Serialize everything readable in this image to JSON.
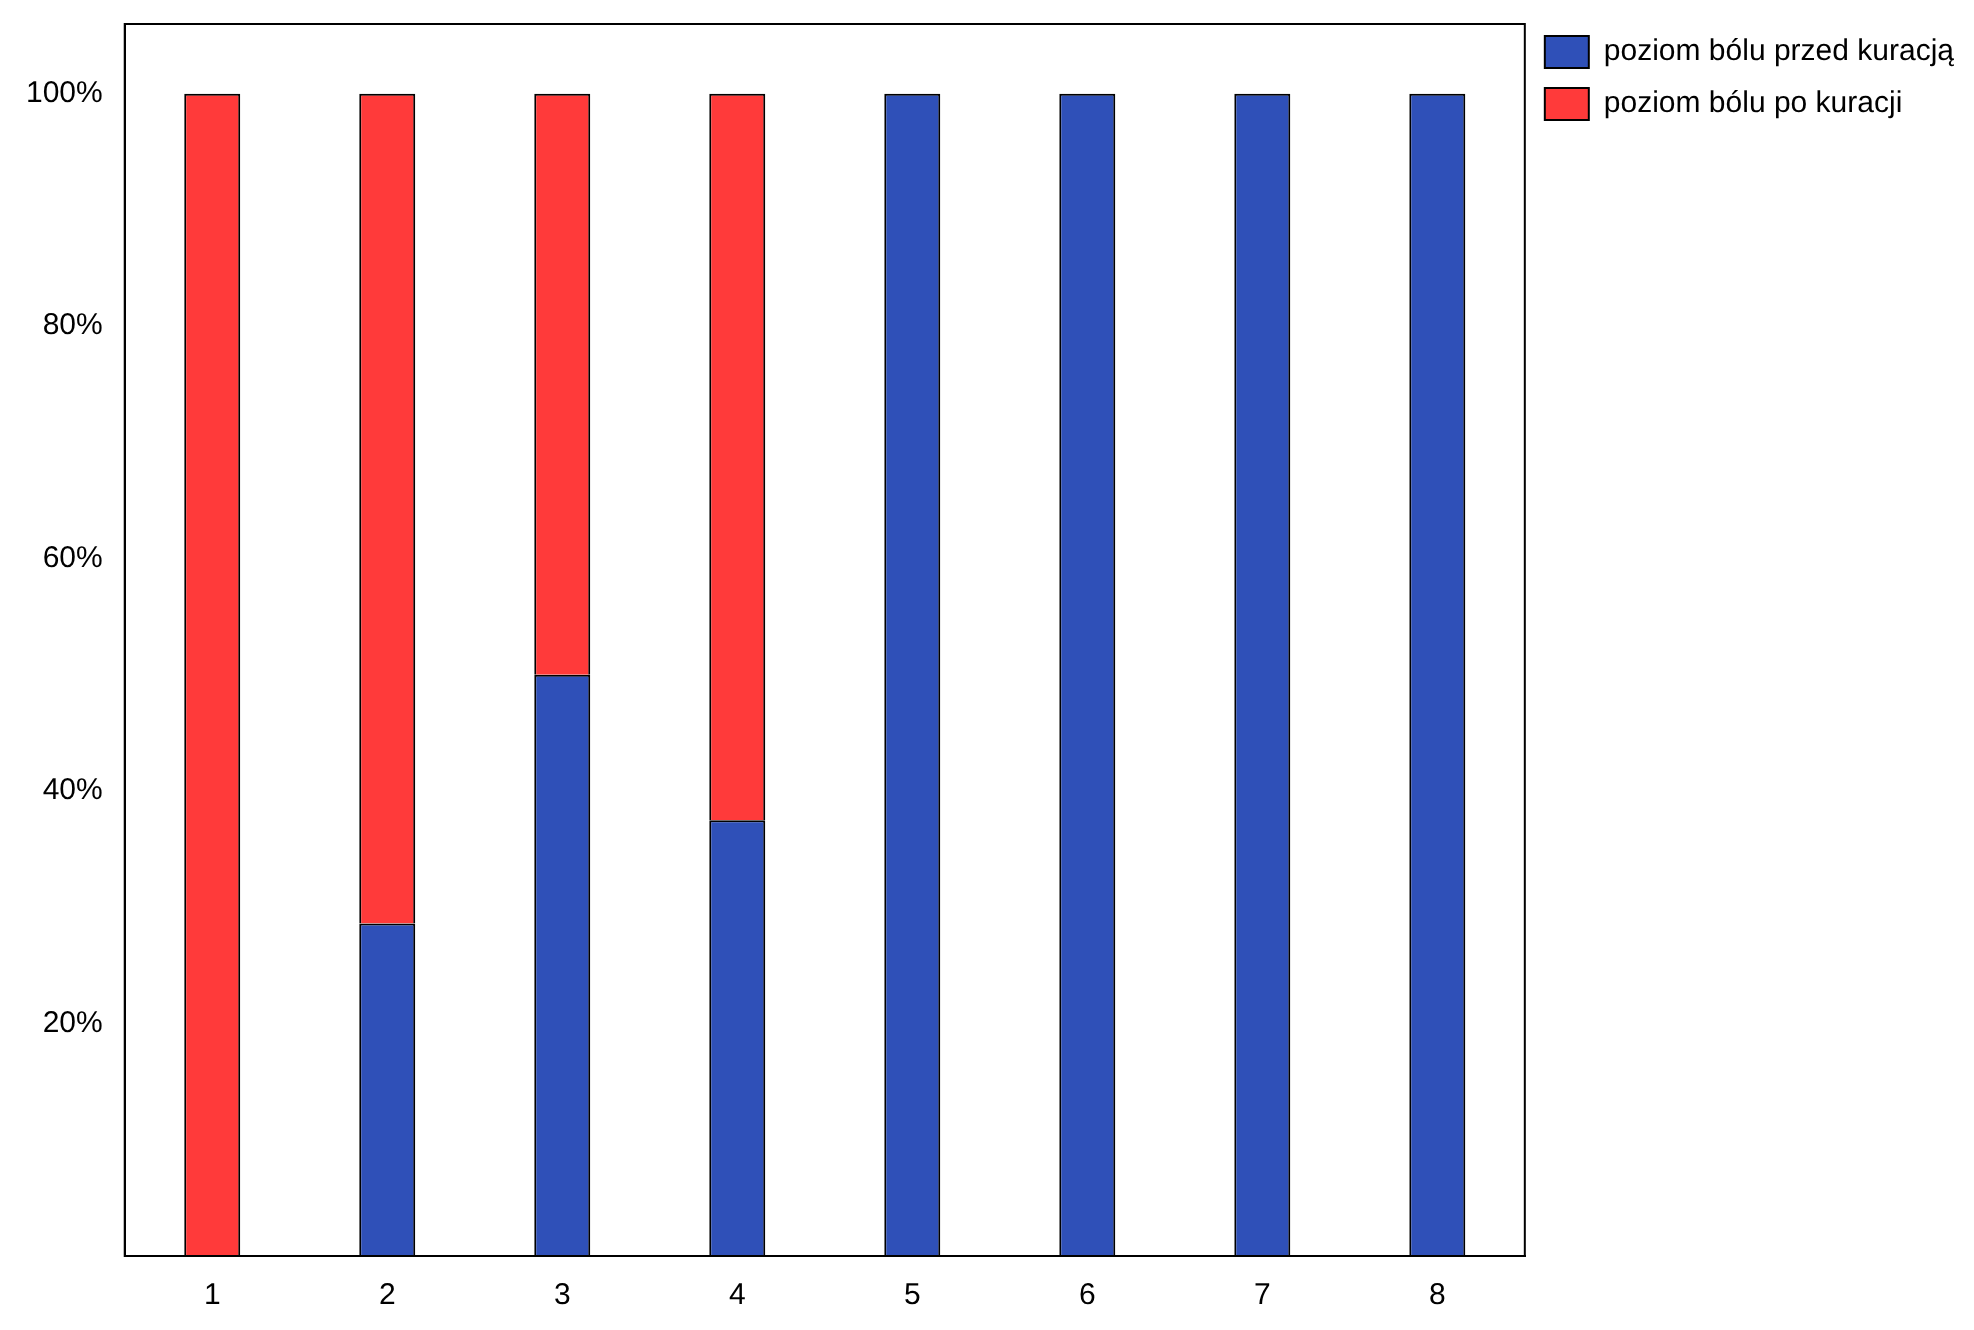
{
  "chart_data": {
    "type": "bar",
    "stacked": true,
    "categories": [
      "1",
      "2",
      "3",
      "4",
      "5",
      "6",
      "7",
      "8"
    ],
    "series": [
      {
        "name": "poziom bólu przed kuracją",
        "color": "#2f50b8",
        "values": [
          0,
          28.6,
          50,
          37.5,
          100,
          100,
          100,
          100
        ]
      },
      {
        "name": "poziom bólu po kuracji",
        "color": "#ff3a3a",
        "values": [
          100,
          71.4,
          50,
          62.5,
          0,
          0,
          0,
          0
        ]
      }
    ],
    "ylim": [
      0,
      106
    ],
    "yticks": [
      {
        "value": 20,
        "label": "20%"
      },
      {
        "value": 40,
        "label": "40%"
      },
      {
        "value": 60,
        "label": "60%"
      },
      {
        "value": 80,
        "label": "80%"
      },
      {
        "value": 100,
        "label": "100%"
      }
    ],
    "grid": false,
    "legend": "top right"
  }
}
